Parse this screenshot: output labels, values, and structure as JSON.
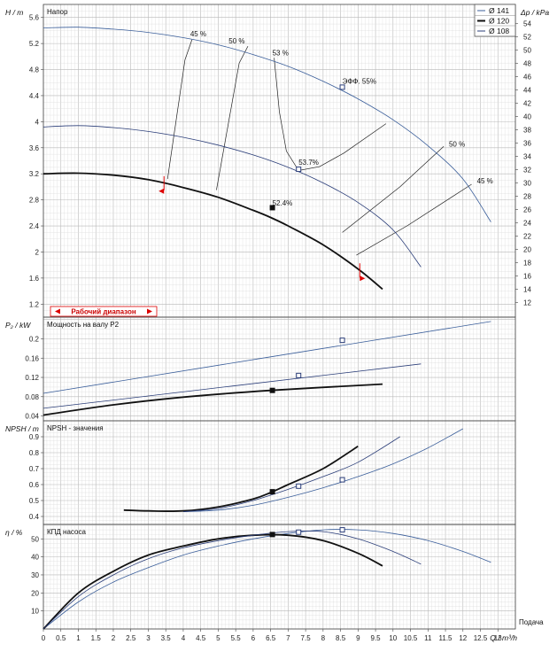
{
  "chart_data": {
    "type": "line",
    "x_axis": {
      "label": "Q / m³/h",
      "side_label": "Подача",
      "range": [
        0,
        13.5
      ],
      "ticks": [
        "0",
        "0.5",
        "1",
        "1.5",
        "2",
        "2.5",
        "3",
        "3.5",
        "4",
        "4.5",
        "5",
        "5.5",
        "6",
        "6.5",
        "7",
        "7.5",
        "8",
        "8.5",
        "9",
        "9.5",
        "10",
        "10.5",
        "11",
        "11.5",
        "12",
        "12.5",
        "13"
      ]
    },
    "legend": [
      {
        "name": "Ø 141",
        "color": "#3a5e9a",
        "width": 0.8
      },
      {
        "name": "Ø 120",
        "color": "#111111",
        "width": 1.8
      },
      {
        "name": "Ø 108",
        "color": "#2a3d78",
        "width": 0.8
      }
    ],
    "operating_range_label": "Рабочий диапазон",
    "panels": [
      {
        "id": "head",
        "title": "Напор",
        "ylabel": "H / m",
        "ylabel_right": "Δp / kPa",
        "ylim": [
          1.0,
          5.8
        ],
        "yright_lim": [
          9.8,
          56.9
        ],
        "yticks": [
          "1.2",
          "1.6",
          "2",
          "2.4",
          "2.8",
          "3.2",
          "3.6",
          "4",
          "4.4",
          "4.8",
          "5.2",
          "5.6"
        ],
        "yright_ticks": [
          "12",
          "14",
          "16",
          "18",
          "20",
          "22",
          "24",
          "26",
          "28",
          "30",
          "32",
          "34",
          "36",
          "38",
          "40",
          "42",
          "44",
          "46",
          "48",
          "50",
          "52",
          "54"
        ],
        "series": [
          {
            "name": "Ø 141",
            "x": [
              0,
              1,
              2,
              3,
              4,
              5,
              6,
              7,
              8,
              9,
              10,
              11,
              12,
              12.8
            ],
            "y": [
              5.44,
              5.45,
              5.42,
              5.37,
              5.29,
              5.18,
              5.03,
              4.85,
              4.62,
              4.35,
              4.03,
              3.63,
              3.12,
              2.46
            ]
          },
          {
            "name": "Ø 120",
            "x": [
              0,
              1,
              2,
              3,
              4,
              5,
              6,
              6.5,
              7,
              8,
              9,
              9.7
            ],
            "y": [
              3.2,
              3.21,
              3.18,
              3.11,
              2.99,
              2.84,
              2.64,
              2.53,
              2.4,
              2.11,
              1.74,
              1.43
            ]
          },
          {
            "name": "Ø 108",
            "x": [
              0,
              1,
              2,
              3,
              4,
              5,
              6,
              7,
              8,
              9,
              10,
              10.8
            ],
            "y": [
              3.92,
              3.94,
              3.91,
              3.85,
              3.76,
              3.64,
              3.49,
              3.3,
              3.06,
              2.76,
              2.34,
              1.77
            ]
          }
        ],
        "efficiency_lines": [
          {
            "label": "45 %",
            "x": [
              3.55,
              4.05,
              4.25
            ],
            "y": [
              3.12,
              4.95,
              5.26
            ]
          },
          {
            "label": "50 %",
            "x": [
              4.95,
              5.6,
              5.85
            ],
            "y": [
              2.95,
              4.9,
              5.16
            ]
          },
          {
            "label": "53 %",
            "x": [
              6.6,
              6.75,
              6.95,
              7.3,
              7.9,
              8.6,
              9.8
            ],
            "y": [
              4.98,
              4.15,
              3.55,
              3.25,
              3.31,
              3.52,
              3.97
            ]
          },
          {
            "label": "50 %",
            "x": [
              8.55,
              10.2,
              11.45
            ],
            "y": [
              2.3,
              3.0,
              3.62
            ]
          },
          {
            "label": "45 %",
            "x": [
              8.95,
              10.4,
              12.25
            ],
            "y": [
              1.95,
              2.4,
              3.04
            ]
          }
        ],
        "eff_labels": [
          {
            "label": "45 %",
            "x": 4.2,
            "y": 5.31
          },
          {
            "label": "50 %",
            "x": 5.3,
            "y": 5.2
          },
          {
            "label": "53 %",
            "x": 6.55,
            "y": 5.02
          },
          {
            "label": "ЭФФ. 55%",
            "x": 8.55,
            "y": 4.58
          },
          {
            "label": "53.7%",
            "x": 7.3,
            "y": 3.34
          },
          {
            "label": "52.4%",
            "x": 6.55,
            "y": 2.71
          },
          {
            "label": "50 %",
            "x": 11.6,
            "y": 3.62
          },
          {
            "label": "45 %",
            "x": 12.4,
            "y": 3.05
          }
        ],
        "markers": [
          {
            "x": 6.55,
            "y": 2.68,
            "filled": true
          },
          {
            "x": 7.3,
            "y": 3.27
          },
          {
            "x": 8.55,
            "y": 4.53
          }
        ]
      },
      {
        "id": "power",
        "title": "Мощность на валу P2",
        "ylabel": "P₂ / kW",
        "ylim": [
          0.03,
          0.245
        ],
        "yticks": [
          "0.04",
          "0.08",
          "0.12",
          "0.16",
          "0.2"
        ],
        "series": [
          {
            "name": "Ø 141",
            "x": [
              0,
              12.8
            ],
            "y": [
              0.087,
              0.236
            ]
          },
          {
            "name": "Ø 120",
            "x": [
              0,
              2,
              4,
              6.5,
              9.7
            ],
            "y": [
              0.042,
              0.063,
              0.079,
              0.093,
              0.106
            ]
          },
          {
            "name": "Ø 108",
            "x": [
              0,
              10.8
            ],
            "y": [
              0.056,
              0.148
            ]
          }
        ],
        "markers": [
          {
            "x": 6.55,
            "y": 0.093,
            "filled": true
          },
          {
            "x": 7.3,
            "y": 0.124
          },
          {
            "x": 8.55,
            "y": 0.197
          }
        ]
      },
      {
        "id": "npsh",
        "title": "NPSH - значения",
        "ylabel": "NPSH / m",
        "ylim": [
          0.35,
          1.0
        ],
        "yticks": [
          "0.4",
          "0.5",
          "0.6",
          "0.7",
          "0.8",
          "0.9"
        ],
        "series": [
          {
            "name": "Ø 141",
            "x": [
              4.0,
              5,
              6,
              7,
              8,
              9,
              10,
              11,
              12.0
            ],
            "y": [
              0.43,
              0.44,
              0.47,
              0.52,
              0.58,
              0.65,
              0.73,
              0.83,
              0.95
            ]
          },
          {
            "name": "Ø 120",
            "x": [
              2.3,
              3,
              4,
              5,
              6,
              6.5,
              7,
              8,
              9.0
            ],
            "y": [
              0.44,
              0.435,
              0.435,
              0.46,
              0.51,
              0.55,
              0.6,
              0.7,
              0.84
            ]
          },
          {
            "name": "Ø 108",
            "x": [
              4.0,
              5,
              6,
              7,
              8,
              9,
              10.2
            ],
            "y": [
              0.43,
              0.45,
              0.5,
              0.57,
              0.65,
              0.74,
              0.9
            ]
          }
        ],
        "markers": [
          {
            "x": 6.55,
            "y": 0.555,
            "filled": true
          },
          {
            "x": 7.3,
            "y": 0.59
          },
          {
            "x": 8.55,
            "y": 0.63
          }
        ]
      },
      {
        "id": "eta",
        "title": "КПД насоса",
        "ylabel": "η / %",
        "ylim": [
          0,
          58
        ],
        "yticks": [
          "10",
          "20",
          "30",
          "40",
          "50"
        ],
        "series": [
          {
            "name": "Ø 141",
            "x": [
              0,
              1,
              2,
              3,
              4,
              5,
              6,
              7,
              8,
              9,
              10,
              11,
              12,
              12.8
            ],
            "y": [
              0,
              15,
              26,
              34,
              41,
              46,
              50,
              53,
              55,
              55,
              53,
              49,
              43,
              37
            ]
          },
          {
            "name": "Ø 120",
            "x": [
              0,
              1,
              2,
              3,
              4,
              5,
              6,
              7,
              8,
              9,
              9.7
            ],
            "y": [
              0,
              20,
              32,
              41,
              46,
              50,
              52,
              52,
              49,
              42,
              35
            ]
          },
          {
            "name": "Ø 108",
            "x": [
              0,
              1,
              2,
              3,
              4,
              5,
              6,
              7,
              8,
              9,
              10,
              10.8
            ],
            "y": [
              0,
              18,
              30,
              39,
              45,
              49,
              52,
              54,
              54,
              50,
              43,
              36
            ]
          }
        ],
        "markers": [
          {
            "x": 6.55,
            "y": 52.4,
            "filled": true
          },
          {
            "x": 7.3,
            "y": 53.7
          },
          {
            "x": 8.55,
            "y": 55
          }
        ]
      }
    ],
    "colors": {
      "grid_major": "#b8b8b8",
      "grid_minor": "#dddddd",
      "border": "#444444",
      "operating": "#dd0000"
    }
  }
}
